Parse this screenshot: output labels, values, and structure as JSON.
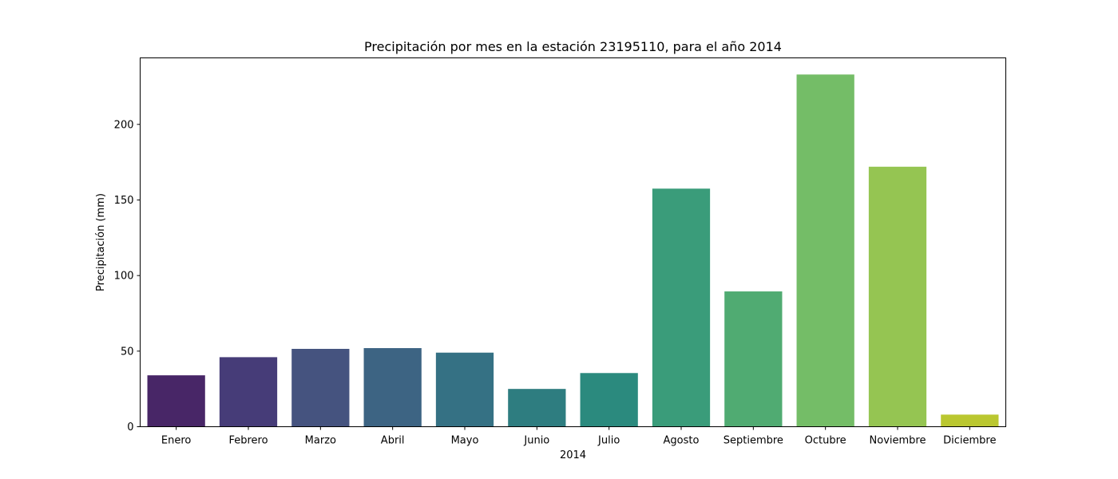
{
  "chart_data": {
    "type": "bar",
    "title": "Precipitación por mes en la estación 23195110, para el año 2014",
    "xlabel": "2014",
    "ylabel": "Precipitación (mm)",
    "categories": [
      "Enero",
      "Febrero",
      "Marzo",
      "Abril",
      "Mayo",
      "Junio",
      "Julio",
      "Agosto",
      "Septiembre",
      "Octubre",
      "Noviembre",
      "Diciembre"
    ],
    "values": [
      34,
      46,
      51.5,
      52,
      49,
      25,
      35.5,
      157.5,
      89.5,
      233,
      172,
      8
    ],
    "colors": [
      "#482667",
      "#463c78",
      "#45537f",
      "#3d6483",
      "#357184",
      "#2e7d80",
      "#2b8a7e",
      "#3a9c7a",
      "#50ab72",
      "#74bd67",
      "#95c552",
      "#bac730"
    ],
    "ylim": [
      0,
      244
    ],
    "yticks": [
      0,
      50,
      100,
      150,
      200
    ],
    "grid": false,
    "legend": "none"
  }
}
